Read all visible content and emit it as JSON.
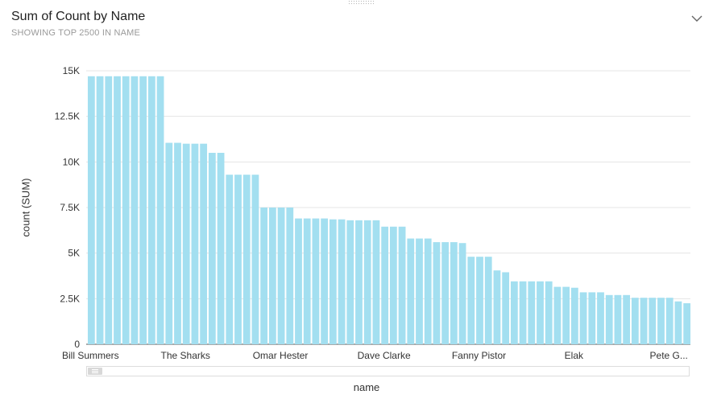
{
  "header": {
    "title": "Sum of Count by Name",
    "subtitle": "SHOWING TOP 2500 IN NAME"
  },
  "colors": {
    "bar": "#a3dff0",
    "grid": "#e4e4e4",
    "axis": "#555555"
  },
  "icons": {
    "menu": "chevron-down-icon",
    "scroll": "scroll-thumb"
  },
  "chart_data": {
    "type": "bar",
    "xlabel": "name",
    "ylabel": "count (SUM)",
    "ylim": [
      0,
      15000
    ],
    "yticks": [
      0,
      2500,
      5000,
      7500,
      10000,
      12500,
      15000
    ],
    "ytick_labels": [
      "0",
      "2.5K",
      "5K",
      "7.5K",
      "10K",
      "12.5K",
      "15K"
    ],
    "grid": true,
    "visible_category_labels": [
      {
        "index": 0,
        "label": "Bill Summers"
      },
      {
        "index": 11,
        "label": "The Sharks"
      },
      {
        "index": 22,
        "label": "Omar Hester"
      },
      {
        "index": 34,
        "label": "Dave Clarke"
      },
      {
        "index": 45,
        "label": "Fanny Pistor"
      },
      {
        "index": 56,
        "label": "Elak"
      },
      {
        "index": 67,
        "label": "Pete G..."
      }
    ],
    "values": [
      14700,
      14700,
      14700,
      14700,
      14700,
      14700,
      14700,
      14700,
      14700,
      11050,
      11050,
      11000,
      11000,
      11000,
      10500,
      10500,
      9300,
      9300,
      9300,
      9300,
      7500,
      7500,
      7500,
      7500,
      6900,
      6900,
      6900,
      6900,
      6850,
      6850,
      6800,
      6800,
      6800,
      6800,
      6450,
      6450,
      6450,
      5800,
      5800,
      5800,
      5600,
      5600,
      5600,
      5550,
      4800,
      4800,
      4800,
      4050,
      3950,
      3450,
      3450,
      3450,
      3450,
      3450,
      3150,
      3150,
      3100,
      2850,
      2850,
      2850,
      2700,
      2700,
      2700,
      2550,
      2550,
      2550,
      2550,
      2550,
      2350,
      2250
    ]
  }
}
